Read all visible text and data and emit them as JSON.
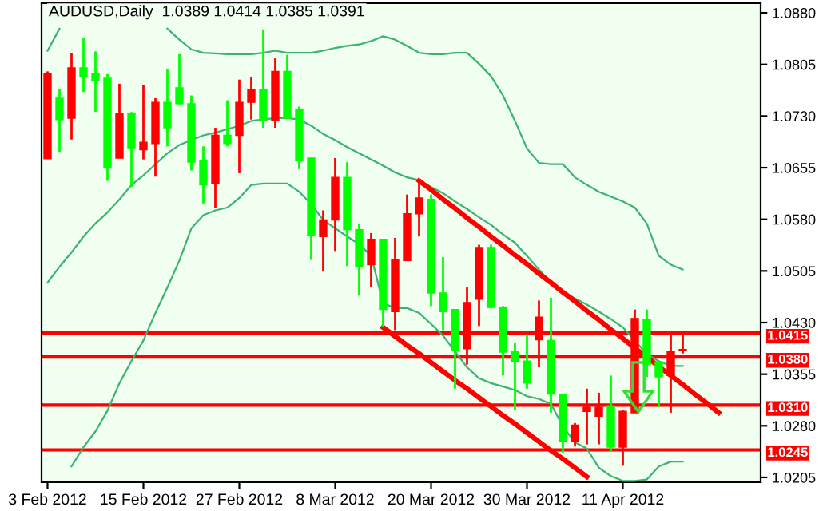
{
  "chart_data": {
    "type": "candlestick",
    "title": "AUDUSD,Daily  1.0389 1.0414 1.0385 1.0391",
    "categories": [
      "3 Feb 2012",
      null,
      null,
      null,
      null,
      null,
      null,
      null,
      "15 Feb 2012",
      null,
      null,
      null,
      null,
      null,
      null,
      null,
      "27 Feb 2012",
      null,
      null,
      null,
      null,
      null,
      null,
      null,
      "8 Mar 2012",
      null,
      null,
      null,
      null,
      null,
      null,
      null,
      "20 Mar 2012",
      null,
      null,
      null,
      null,
      null,
      null,
      null,
      "30 Mar 2012",
      null,
      null,
      null,
      null,
      null,
      null,
      null,
      "11 Apr 2012",
      null,
      null,
      null,
      null,
      null,
      null,
      null,
      null,
      null,
      null,
      null
    ],
    "ohlc": [
      [
        1.0668,
        1.0795,
        1.0668,
        1.0792
      ],
      [
        1.0756,
        1.0769,
        1.0678,
        1.0725
      ],
      [
        1.0727,
        1.0822,
        1.0696,
        1.08
      ],
      [
        1.08,
        1.0843,
        1.0765,
        1.0788
      ],
      [
        1.0791,
        1.0824,
        1.0736,
        1.0781
      ],
      [
        1.0785,
        1.0791,
        1.0636,
        1.0655
      ],
      [
        1.0669,
        1.0777,
        1.0669,
        1.0733
      ],
      [
        1.0733,
        1.0736,
        1.0627,
        1.0684
      ],
      [
        1.0681,
        1.0775,
        1.0667,
        1.0692
      ],
      [
        1.069,
        1.0756,
        1.0642,
        1.075
      ],
      [
        1.075,
        1.0798,
        1.0686,
        1.0713
      ],
      [
        1.0771,
        1.082,
        1.0747,
        1.0748
      ],
      [
        1.0748,
        1.076,
        1.0651,
        1.0663
      ],
      [
        1.0665,
        1.0686,
        1.0603,
        1.063
      ],
      [
        1.0632,
        1.0713,
        1.0596,
        1.0702
      ],
      [
        1.0702,
        1.0753,
        1.0686,
        1.069
      ],
      [
        1.0702,
        1.0783,
        1.0647,
        1.075
      ],
      [
        1.075,
        1.0787,
        1.0725,
        1.0769
      ],
      [
        1.0769,
        1.0856,
        1.0713,
        1.0723
      ],
      [
        1.0723,
        1.0814,
        1.0713,
        1.0795
      ],
      [
        1.0795,
        1.0819,
        1.0727,
        1.0727
      ],
      [
        1.0739,
        1.0744,
        1.0653,
        1.0665
      ],
      [
        1.0669,
        1.0669,
        1.0521,
        1.0557
      ],
      [
        1.0555,
        1.0593,
        1.0504,
        1.0579
      ],
      [
        1.0579,
        1.0669,
        1.0534,
        1.0641
      ],
      [
        1.0641,
        1.0663,
        1.0512,
        1.0565
      ],
      [
        1.0565,
        1.0574,
        1.0469,
        1.0512
      ],
      [
        1.0514,
        1.056,
        1.0481,
        1.0551
      ],
      [
        1.0551,
        1.0551,
        1.0423,
        1.0449
      ],
      [
        1.0446,
        1.0553,
        1.0419,
        1.0522
      ],
      [
        1.052,
        1.0616,
        1.052,
        1.0588
      ],
      [
        1.0588,
        1.0634,
        1.0555,
        1.0611
      ],
      [
        1.0609,
        1.0616,
        1.0454,
        1.0473
      ],
      [
        1.0473,
        1.0525,
        1.0419,
        1.0446
      ],
      [
        1.0449,
        1.0449,
        1.0334,
        1.039
      ],
      [
        1.0392,
        1.0481,
        1.0369,
        1.0459
      ],
      [
        1.0464,
        1.0543,
        1.0425,
        1.0539
      ],
      [
        1.0539,
        1.0543,
        1.0451,
        1.0452
      ],
      [
        1.0452,
        1.0454,
        1.0353,
        1.0387
      ],
      [
        1.0388,
        1.04,
        1.0303,
        1.0373
      ],
      [
        1.0374,
        1.0413,
        1.0334,
        1.0342
      ],
      [
        1.0405,
        1.0462,
        1.0365,
        1.0438
      ],
      [
        1.0404,
        1.0466,
        1.0299,
        1.0326
      ],
      [
        1.0325,
        1.0325,
        1.0241,
        1.0258
      ],
      [
        1.0258,
        1.0284,
        1.025,
        1.0281
      ],
      [
        1.0301,
        1.0334,
        1.0253,
        1.0307
      ],
      [
        1.0294,
        1.0328,
        1.0253,
        1.0307
      ],
      [
        1.0309,
        1.0353,
        1.0243,
        1.0249
      ],
      [
        1.0249,
        1.0303,
        1.0222,
        1.0301
      ],
      [
        1.0299,
        1.0449,
        1.0299,
        1.0436
      ],
      [
        1.0435,
        1.0449,
        1.0351,
        1.0369
      ],
      [
        1.0373,
        1.0374,
        1.0307,
        1.0351
      ],
      [
        1.0353,
        1.0413,
        1.0299,
        1.0388
      ],
      [
        1.0389,
        1.0414,
        1.0385,
        1.0391
      ],
      null,
      null,
      null,
      null,
      null,
      null
    ],
    "series": [
      {
        "type": "line",
        "color": "#3cb371",
        "values": [
          1.0825,
          1.0857,
          null,
          null,
          null,
          null,
          null,
          null,
          null,
          null,
          1.0857,
          1.0841,
          1.0827,
          1.0822,
          1.0821,
          1.082,
          1.082,
          1.082,
          1.0822,
          1.0825,
          1.0822,
          1.0822,
          1.0822,
          1.0825,
          1.0829,
          1.0832,
          1.0834,
          1.0839,
          1.0846,
          1.0841,
          1.0832,
          1.0822,
          1.082,
          1.082,
          1.0822,
          1.0822,
          1.0806,
          1.0788,
          1.076,
          1.0723,
          1.0683,
          1.0662,
          1.066,
          1.066,
          1.0641,
          1.063,
          1.062,
          1.0613,
          1.0606,
          1.0597,
          1.0574,
          1.0527,
          1.0514,
          1.0507,
          null,
          null,
          null,
          null,
          null,
          null
        ]
      },
      {
        "type": "line",
        "color": "#3cb371",
        "values": [
          1.0488,
          1.0511,
          1.0532,
          1.0555,
          1.0574,
          1.059,
          1.0609,
          1.063,
          1.0644,
          1.066,
          1.0676,
          1.0688,
          1.0695,
          1.0702,
          1.0706,
          1.0711,
          1.0716,
          1.0723,
          1.0725,
          1.0727,
          1.0727,
          1.0725,
          1.0716,
          1.0704,
          1.0695,
          1.0685,
          1.0676,
          1.0667,
          1.0658,
          1.0648,
          1.0641,
          1.0637,
          1.0627,
          1.0618,
          1.0606,
          1.0595,
          1.0583,
          1.0572,
          1.0558,
          1.0546,
          1.0527,
          1.0507,
          1.0488,
          1.0476,
          1.0465,
          1.0456,
          1.0446,
          1.0435,
          1.0423,
          1.0404,
          1.0384,
          1.0374,
          1.0367,
          1.0367,
          null,
          null,
          null,
          null,
          null,
          null
        ]
      },
      {
        "type": "line",
        "color": "#3cb371",
        "values": [
          null,
          null,
          1.0221,
          1.0249,
          1.0272,
          1.0302,
          1.0342,
          1.0374,
          1.0404,
          1.0444,
          1.0481,
          1.052,
          1.0567,
          1.0586,
          1.0593,
          1.0597,
          1.0611,
          1.063,
          1.0632,
          1.0632,
          1.0632,
          1.062,
          1.0602,
          1.0579,
          1.0567,
          1.0555,
          1.0544,
          1.0527,
          1.0458,
          1.0451,
          1.0451,
          1.0444,
          1.0428,
          1.0411,
          1.0388,
          1.0365,
          1.0349,
          1.0342,
          1.0337,
          1.0332,
          1.0323,
          1.0319,
          1.0312,
          1.0279,
          1.0256,
          1.0247,
          1.0219,
          1.0207,
          1.02,
          1.02,
          1.0202,
          1.0221,
          1.0228,
          1.0228,
          null,
          null,
          null,
          null,
          null,
          null
        ]
      },
      {
        "type": "line",
        "color": "#ff0000",
        "values": [
          null,
          null,
          null,
          null,
          null,
          null,
          null,
          null,
          null,
          null,
          null,
          null,
          null,
          null,
          null,
          null,
          null,
          null,
          null,
          null,
          null,
          null,
          null,
          null,
          null,
          null,
          null,
          null,
          null,
          null,
          null,
          1.0636,
          1.0623,
          1.0609,
          1.0596,
          1.0582,
          1.0569,
          1.0555,
          1.0542,
          1.0528,
          1.0515,
          1.0501,
          1.0488,
          1.0474,
          1.0461,
          1.0447,
          1.0434,
          1.042,
          1.0407,
          1.0393,
          1.038,
          1.0366,
          1.0353,
          1.034,
          1.0326,
          1.0313,
          1.0299,
          null,
          null,
          null
        ]
      },
      {
        "type": "line",
        "color": "#ff0000",
        "values": [
          null,
          null,
          null,
          null,
          null,
          null,
          null,
          null,
          null,
          null,
          null,
          null,
          null,
          null,
          null,
          null,
          null,
          null,
          null,
          null,
          null,
          null,
          null,
          null,
          null,
          null,
          null,
          null,
          1.0423,
          1.041,
          1.0397,
          1.0385,
          1.0372,
          1.0359,
          1.0346,
          1.0334,
          1.0321,
          1.0308,
          1.0295,
          1.0283,
          1.027,
          1.0257,
          1.0244,
          1.0232,
          1.0219,
          1.0206,
          null,
          null,
          null,
          null,
          null,
          null,
          null,
          null,
          null,
          null,
          null,
          null,
          null,
          null
        ]
      }
    ],
    "ylim": [
      1.0198,
      1.0894
    ],
    "yticks": [
      {
        "value": 1.088,
        "label": "1.0880"
      },
      1.0805,
      {
        "value": 1.073,
        "label": "1.0730"
      },
      1.0655,
      {
        "value": 1.058,
        "label": "1.0580"
      },
      1.0505,
      {
        "value": 1.043,
        "label": "1.0430"
      },
      1.0355,
      {
        "value": 1.028,
        "label": "1.0280"
      },
      1.0205
    ],
    "ref_lines": [
      {
        "axis": "y",
        "value": 1.0415,
        "label": "1.0415",
        "color": "#ff0000"
      },
      {
        "axis": "y",
        "value": 1.038,
        "label": "1.0380",
        "color": "#ff0000"
      },
      {
        "axis": "y",
        "value": 1.031,
        "label": "1.0310",
        "color": "#ff0000"
      },
      {
        "axis": "y",
        "value": 1.0245,
        "label": "1.0245",
        "color": "#ff0000"
      }
    ],
    "grid": false,
    "legend": false
  }
}
